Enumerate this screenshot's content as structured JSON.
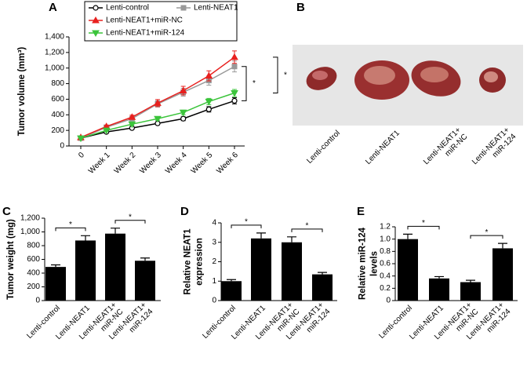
{
  "chart_data": [
    {
      "type": "line",
      "panel": "A",
      "ylabel": "Tumor volume (mm³)",
      "categories": [
        "0",
        "Week 1",
        "Week 2",
        "Week 3",
        "Week 4",
        "Week 5",
        "Week 6"
      ],
      "ylim": [
        0,
        1400
      ],
      "yticks": [
        0,
        200,
        400,
        600,
        800,
        {
          "value": 1000,
          "label": "1,000"
        },
        {
          "value": 1200,
          "label": "1,200"
        },
        {
          "value": 1400,
          "label": "1,400"
        }
      ],
      "series": [
        {
          "name": "Lenti-control",
          "color": "#000000",
          "marker": "circle-open",
          "values": [
            100,
            180,
            230,
            290,
            350,
            470,
            580
          ],
          "errors": [
            10,
            12,
            15,
            15,
            25,
            35,
            40
          ]
        },
        {
          "name": "Lenti-NEAT1",
          "color": "#999999",
          "marker": "square",
          "values": [
            100,
            240,
            350,
            540,
            690,
            840,
            1020
          ],
          "errors": [
            10,
            15,
            25,
            40,
            50,
            60,
            70
          ]
        },
        {
          "name": "Lenti-NEAT1+miR-NC",
          "color": "#e8201e",
          "marker": "triangle-up",
          "values": [
            110,
            250,
            370,
            550,
            710,
            900,
            1140
          ],
          "errors": [
            10,
            15,
            25,
            45,
            55,
            65,
            80
          ]
        },
        {
          "name": "Lenti-NEAT1+miR-124",
          "color": "#3bc43b",
          "marker": "triangle-down",
          "values": [
            100,
            200,
            280,
            350,
            430,
            570,
            680
          ],
          "errors": [
            10,
            12,
            15,
            20,
            30,
            40,
            45
          ]
        }
      ],
      "significance": [
        {
          "series": [
            "Lenti-control",
            "Lenti-NEAT1"
          ],
          "label": "*"
        },
        {
          "series": [
            "Lenti-NEAT1+miR-124",
            "Lenti-NEAT1+miR-NC"
          ],
          "label": "*"
        }
      ]
    },
    {
      "type": "image",
      "panel": "B",
      "categories": [
        "Lenti-control",
        "Lenti-NEAT1",
        "Lenti-NEAT1+\nmiR-NC",
        "Lenti-NEAT1+\nmiR-124"
      ]
    },
    {
      "type": "bar",
      "panel": "C",
      "ylabel": "Tumor weight (mg)",
      "color": "#000000",
      "categories": [
        "Lenti-control",
        "Lenti-NEAT1",
        "Lenti-NEAT1+\nmiR-NC",
        "Lenti-NEAT1+\nmiR-124"
      ],
      "values": [
        490,
        875,
        975,
        580
      ],
      "errors": [
        30,
        70,
        80,
        40
      ],
      "ylim": [
        0,
        1200
      ],
      "yticks": [
        0,
        200,
        400,
        600,
        800,
        {
          "value": 1000,
          "label": "1,000"
        },
        {
          "value": 1200,
          "label": "1,200"
        }
      ],
      "significance": [
        {
          "groups": [
            "Lenti-control",
            "Lenti-NEAT1"
          ],
          "label": "*"
        },
        {
          "groups": [
            "Lenti-NEAT1+\nmiR-NC",
            "Lenti-NEAT1+\nmiR-124"
          ],
          "label": "*"
        }
      ]
    },
    {
      "type": "bar",
      "panel": "D",
      "ylabel": "Relative NEAT1\nexpression",
      "color": "#000000",
      "categories": [
        "Lenti-control",
        "Lenti-NEAT1",
        "Lenti-NEAT1+\nmiR-NC",
        "Lenti-NEAT1+\nmiR-124"
      ],
      "values": [
        1.0,
        3.2,
        3.0,
        1.35
      ],
      "errors": [
        0.08,
        0.28,
        0.28,
        0.1
      ],
      "ylim": [
        0,
        4
      ],
      "yticks": [
        0,
        1,
        2,
        3,
        4
      ],
      "significance": [
        {
          "groups": [
            "Lenti-control",
            "Lenti-NEAT1"
          ],
          "label": "*"
        },
        {
          "groups": [
            "Lenti-NEAT1+\nmiR-NC",
            "Lenti-NEAT1+\nmiR-124"
          ],
          "label": "*"
        }
      ]
    },
    {
      "type": "bar",
      "panel": "E",
      "ylabel": "Relative miR-124\nlevels",
      "color": "#000000",
      "categories": [
        "Lenti-control",
        "Lenti-NEAT1",
        "Lenti-NEAT1+\nmiR-NC",
        "Lenti-NEAT1+\nmiR-124"
      ],
      "values": [
        1.0,
        0.36,
        0.3,
        0.85
      ],
      "errors": [
        0.08,
        0.03,
        0.03,
        0.08
      ],
      "ylim": [
        0,
        1.2
      ],
      "yticks": [
        0,
        0.2,
        0.4,
        0.6,
        0.8,
        {
          "value": 1.0,
          "label": "1.0"
        },
        1.2
      ],
      "significance": [
        {
          "groups": [
            "Lenti-control",
            "Lenti-NEAT1"
          ],
          "label": "*"
        },
        {
          "groups": [
            "Lenti-NEAT1+\nmiR-NC",
            "Lenti-NEAT1+\nmiR-124"
          ],
          "label": "*"
        }
      ]
    }
  ]
}
